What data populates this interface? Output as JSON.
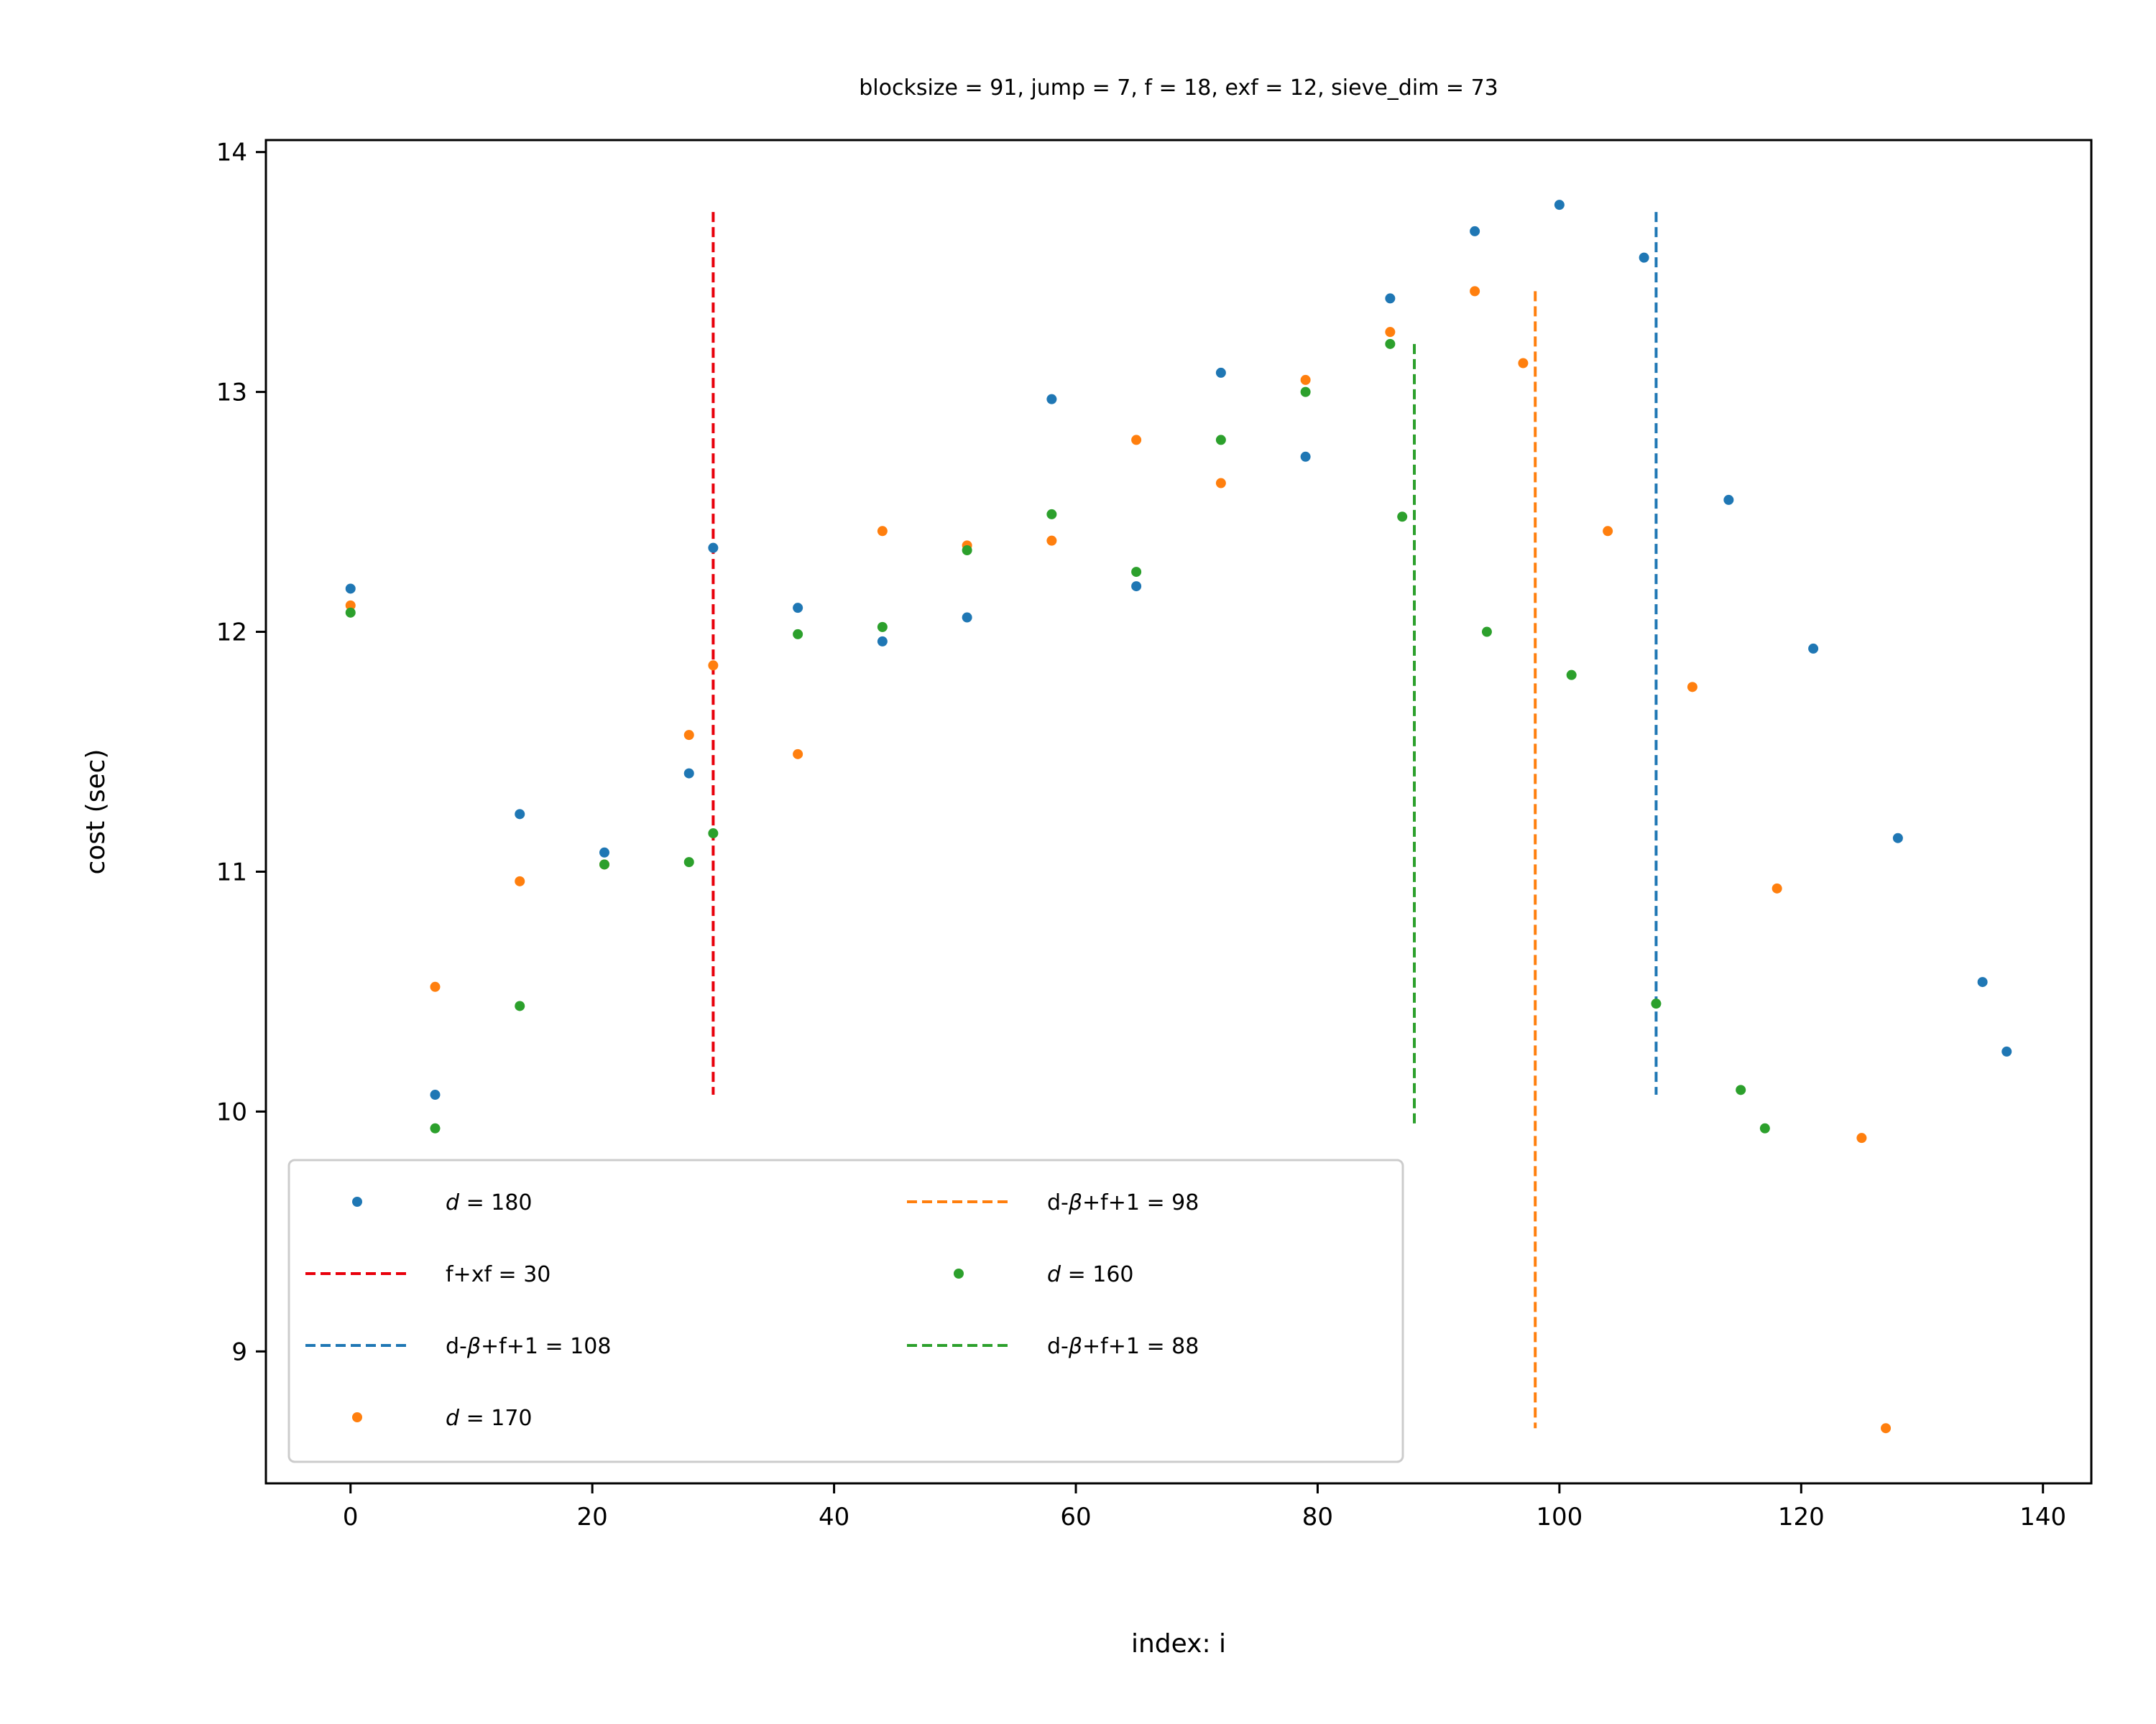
{
  "chart_data": {
    "type": "scatter",
    "title": "blocksize = 91, jump = 7, f = 18, exf = 12, sieve_dim = 73",
    "xlabel": "index: i",
    "ylabel": "cost (sec)",
    "xlim": [
      -7,
      144
    ],
    "ylim": [
      8.45,
      14.05
    ],
    "xticks": [
      0,
      20,
      40,
      60,
      80,
      100,
      120,
      140
    ],
    "yticks": [
      9,
      10,
      11,
      12,
      13,
      14
    ],
    "grid": false,
    "legend": {
      "placement": "lower-left",
      "columns": 2
    },
    "series": [
      {
        "name": "d = 180",
        "color": "#1f77b4",
        "points": [
          [
            0,
            12.18
          ],
          [
            7,
            10.07
          ],
          [
            14,
            11.24
          ],
          [
            21,
            11.08
          ],
          [
            28,
            11.41
          ],
          [
            30,
            12.35
          ],
          [
            37,
            12.1
          ],
          [
            44,
            11.96
          ],
          [
            51,
            12.06
          ],
          [
            58,
            12.97
          ],
          [
            65,
            12.19
          ],
          [
            72,
            13.08
          ],
          [
            79,
            12.73
          ],
          [
            86,
            13.39
          ],
          [
            93,
            13.67
          ],
          [
            100,
            13.78
          ],
          [
            107,
            13.56
          ],
          [
            114,
            12.55
          ],
          [
            121,
            11.93
          ],
          [
            128,
            11.14
          ],
          [
            135,
            10.54
          ],
          [
            137,
            10.25
          ]
        ]
      },
      {
        "name": "d = 170",
        "color": "#ff7f0e",
        "points": [
          [
            0,
            12.11
          ],
          [
            7,
            10.52
          ],
          [
            14,
            10.96
          ],
          [
            21,
            11.03
          ],
          [
            28,
            11.57
          ],
          [
            30,
            11.86
          ],
          [
            37,
            11.49
          ],
          [
            44,
            12.42
          ],
          [
            51,
            12.36
          ],
          [
            58,
            12.38
          ],
          [
            65,
            12.8
          ],
          [
            72,
            12.62
          ],
          [
            79,
            13.05
          ],
          [
            86,
            13.25
          ],
          [
            93,
            13.42
          ],
          [
            97,
            13.12
          ],
          [
            104,
            12.42
          ],
          [
            111,
            11.77
          ],
          [
            118,
            10.93
          ],
          [
            125,
            9.89
          ],
          [
            127,
            8.68
          ]
        ]
      },
      {
        "name": "d = 160",
        "color": "#2ca02c",
        "points": [
          [
            0,
            12.08
          ],
          [
            7,
            9.93
          ],
          [
            14,
            10.44
          ],
          [
            21,
            11.03
          ],
          [
            28,
            11.04
          ],
          [
            30,
            11.16
          ],
          [
            37,
            11.99
          ],
          [
            44,
            12.02
          ],
          [
            51,
            12.34
          ],
          [
            58,
            12.49
          ],
          [
            65,
            12.25
          ],
          [
            72,
            12.8
          ],
          [
            79,
            13.0
          ],
          [
            86,
            13.2
          ],
          [
            87,
            12.48
          ],
          [
            94,
            12.0
          ],
          [
            101,
            11.82
          ],
          [
            108,
            10.45
          ],
          [
            115,
            10.09
          ],
          [
            117,
            9.93
          ]
        ]
      }
    ],
    "vlines": [
      {
        "label": "f+xf = 30",
        "x": 30,
        "y_range": [
          10.07,
          13.75
        ],
        "color": "#e8000b"
      },
      {
        "label": "d-β+f+1 = 108",
        "x": 108,
        "y_range": [
          10.07,
          13.75
        ],
        "color": "#1f77b4"
      },
      {
        "label": "d-β+f+1 = 98",
        "x": 98,
        "y_range": [
          8.68,
          13.42
        ],
        "color": "#ff7f0e"
      },
      {
        "label": "d-β+f+1 = 88",
        "x": 88,
        "y_range": [
          9.93,
          13.2
        ],
        "color": "#2ca02c"
      }
    ],
    "legend_entries": [
      {
        "kind": "marker",
        "text": "d = 180",
        "color": "#1f77b4"
      },
      {
        "kind": "line",
        "text": "f+xf = 30",
        "color": "#e8000b"
      },
      {
        "kind": "line",
        "text": "d-β+f+1 = 108",
        "color": "#1f77b4"
      },
      {
        "kind": "marker",
        "text": "d = 170",
        "color": "#ff7f0e"
      },
      {
        "kind": "line",
        "text": "d-β+f+1 = 98",
        "color": "#ff7f0e"
      },
      {
        "kind": "marker",
        "text": "d = 160",
        "color": "#2ca02c"
      },
      {
        "kind": "line",
        "text": "d-β+f+1 = 88",
        "color": "#2ca02c"
      }
    ]
  }
}
